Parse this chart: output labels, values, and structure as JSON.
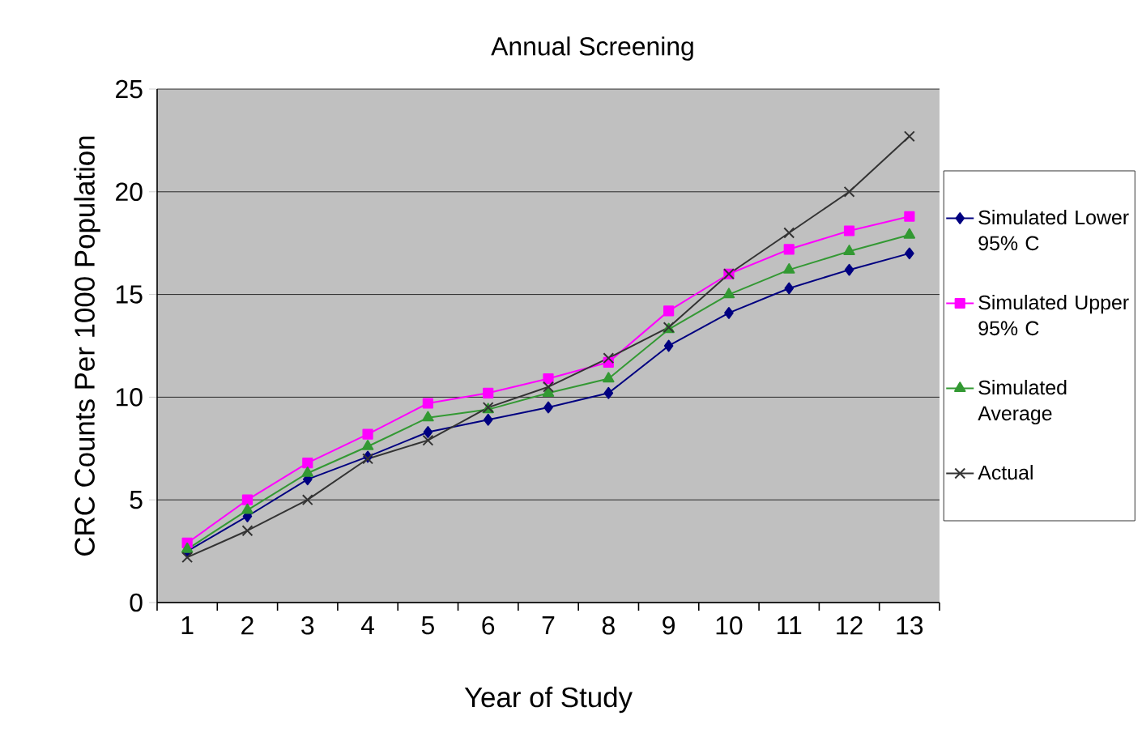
{
  "chart_data": {
    "type": "line",
    "title": "Annual Screening",
    "xlabel": "Year of Study",
    "ylabel": "CRC Counts Per 1000 Population",
    "categories": [
      "1",
      "2",
      "3",
      "4",
      "5",
      "6",
      "7",
      "8",
      "9",
      "10",
      "11",
      "12",
      "13"
    ],
    "series": [
      {
        "name": "Simulated Lower 95% C",
        "color": "#000080",
        "marker": "diamond",
        "values": [
          2.5,
          4.2,
          6.0,
          7.1,
          8.3,
          8.9,
          9.5,
          10.2,
          12.5,
          14.1,
          15.3,
          16.2,
          17.0
        ]
      },
      {
        "name": "Simulated Upper 95% C",
        "color": "#ff00ff",
        "marker": "square",
        "values": [
          2.9,
          5.0,
          6.8,
          8.2,
          9.7,
          10.2,
          10.9,
          11.7,
          14.2,
          16.0,
          17.2,
          18.1,
          18.8
        ]
      },
      {
        "name": "Simulated Average",
        "color": "#339933",
        "marker": "triangle",
        "values": [
          2.6,
          4.5,
          6.3,
          7.6,
          9.0,
          9.4,
          10.2,
          10.9,
          13.3,
          15.0,
          16.2,
          17.1,
          17.9
        ]
      },
      {
        "name": "Actual",
        "color": "#333333",
        "marker": "cross",
        "values": [
          2.2,
          3.5,
          5.0,
          7.0,
          7.9,
          9.5,
          10.5,
          11.9,
          13.4,
          16.0,
          18.0,
          20.0,
          22.7
        ]
      }
    ],
    "ylim": [
      0,
      25
    ],
    "yticks": [
      0,
      5,
      10,
      15,
      20,
      25
    ],
    "grid": "y",
    "legend": "right",
    "line_style": "solid"
  }
}
